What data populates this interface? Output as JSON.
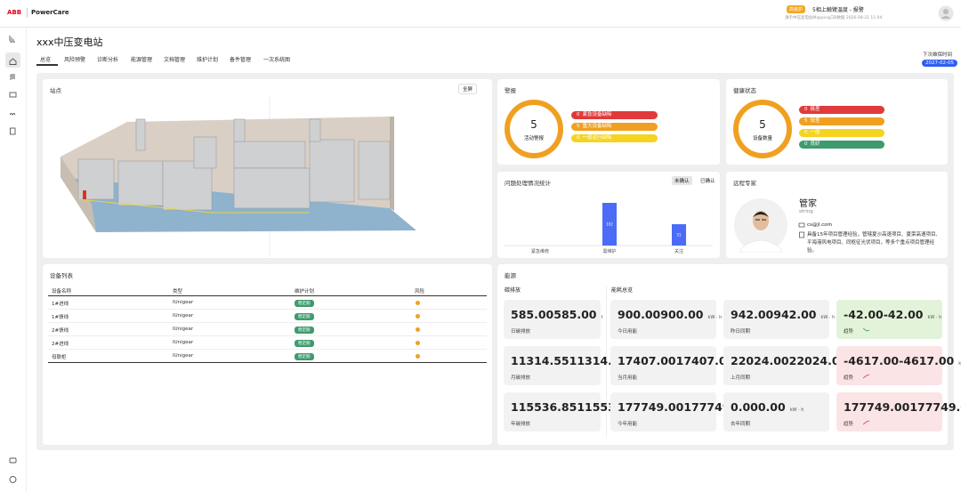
{
  "header": {
    "logo": "ABB",
    "product": "PowerCare",
    "alert_level": "高级护",
    "alert_title": "5相上触臂温度 - 报警",
    "alert_detail": "滇示中压变电站Mapping口B数据 2026-08-21 11:04"
  },
  "page": {
    "title": "xxx中压变电站",
    "tabs": [
      "总览",
      "风险预警",
      "诊断分析",
      "能源管理",
      "文档管理",
      "维护计划",
      "备件管理",
      "一次系统图"
    ],
    "next_maintenance_label": "下次维保时间",
    "next_maintenance_date": "2027-02-05"
  },
  "station": {
    "title": "站点",
    "fullscreen": "全屏"
  },
  "alarms": {
    "title": "警报",
    "count": "5",
    "count_label": "活动警报",
    "ring_color": "#f0a020",
    "items": [
      {
        "count": "0",
        "label": "紧急设备缺陷",
        "color": "#e03a3a"
      },
      {
        "count": "5",
        "label": "重大设备缺陷",
        "color": "#f0a020"
      },
      {
        "count": "0",
        "label": "一般运行缺陷",
        "color": "#f5d421"
      }
    ]
  },
  "health": {
    "title": "健康状态",
    "count": "5",
    "count_label": "设备数量",
    "ring_color": "#f0a020",
    "items": [
      {
        "count": "0",
        "label": "极差",
        "color": "#e03a3a"
      },
      {
        "count": "5",
        "label": "较差",
        "color": "#f0a020"
      },
      {
        "count": "0",
        "label": "一般",
        "color": "#f5d421"
      },
      {
        "count": "0",
        "label": "良好",
        "color": "#3e9b6e"
      }
    ]
  },
  "issues_panel": {
    "toggles": [
      "未确认",
      "已确认"
    ]
  },
  "chart_data": {
    "type": "bar",
    "title": "问题处理情况统计",
    "categories": [
      "紧急维修",
      "需维护",
      "关注"
    ],
    "values": [
      0,
      102,
      51
    ],
    "color": "#4a6cf7"
  },
  "expert": {
    "title": "远程专家",
    "name": "管家",
    "role": "string",
    "email": "cs@jl.com",
    "description": "具备15年项目管理经验，管辖夏沙高速项目、夏荣高速项目、平海港风电项目、同枢征光伏项目，等多个重点项目管理经验。"
  },
  "devices": {
    "title": "设备列表",
    "columns": [
      "设备名称",
      "类型",
      "维护计划",
      "风险"
    ],
    "rows": [
      [
        "1#进线",
        "IUnigear",
        "稳定期"
      ],
      [
        "1#馈线",
        "IUnigear",
        "稳定期"
      ],
      [
        "2#馈线",
        "IUnigear",
        "稳定期"
      ],
      [
        "2#进线",
        "IUnigear",
        "稳定期"
      ],
      [
        "母联柜",
        "IUnigear",
        "稳定期"
      ]
    ]
  },
  "energy": {
    "title": "能源",
    "carbon_title": "碳排放",
    "consumption_title": "能耗总览",
    "carbon": [
      {
        "value": "585.00",
        "unit": "t",
        "label": "日碳排放"
      },
      {
        "value": "11314.55",
        "unit": "t",
        "label": "月碳排放"
      },
      {
        "value": "115536.85",
        "unit": "t",
        "label": "年碳排放"
      }
    ],
    "consumption": [
      {
        "value": "900.00",
        "unit": "kW · h",
        "label": "今日用能",
        "color": "#f2f2f2"
      },
      {
        "value": "942.00",
        "unit": "kW · h",
        "label": "昨日同期",
        "color": "#f2f2f2"
      },
      {
        "value": "-42.00",
        "unit": "kW · h",
        "label": "趋势",
        "color": "#e3f3da"
      },
      {
        "value": "17407.00",
        "unit": "kW · h",
        "label": "当月用能",
        "color": "#f2f2f2"
      },
      {
        "value": "22024.00",
        "unit": "kW · h",
        "label": "上月同期",
        "color": "#f2f2f2"
      },
      {
        "value": "-4617.00",
        "unit": "kW · h",
        "label": "趋势",
        "color": "#fbe4e6"
      },
      {
        "value": "177749.00",
        "unit": "kW · h",
        "label": "今年用能",
        "color": "#f2f2f2"
      },
      {
        "value": "0.00",
        "unit": "kW · h",
        "label": "去年同期",
        "color": "#f2f2f2"
      },
      {
        "value": "177749.00",
        "unit": "kW · h",
        "label": "趋势",
        "color": "#fbe4e6"
      }
    ]
  }
}
